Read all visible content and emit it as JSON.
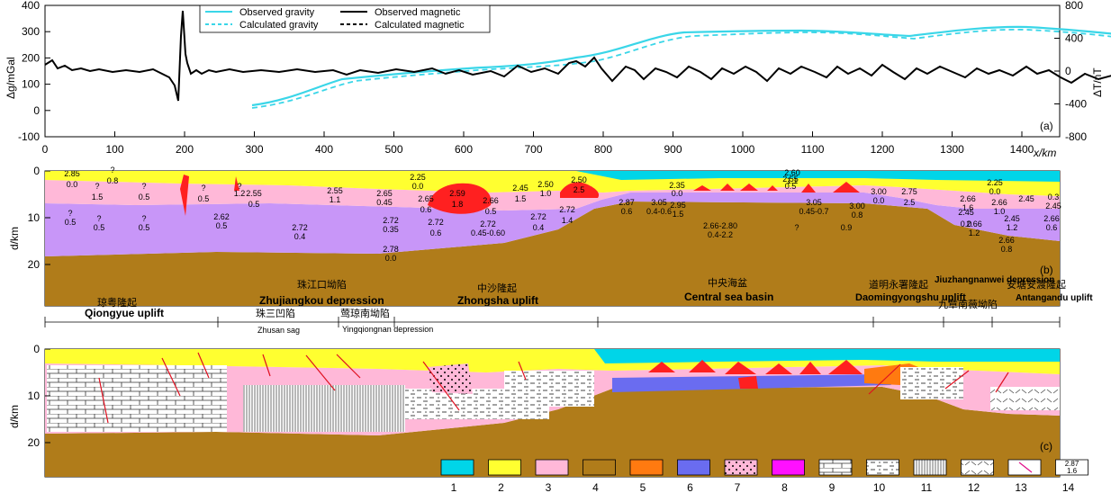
{
  "panel_a": {
    "tag": "(a)",
    "left_axis": {
      "label": "Δg/mGal",
      "ticks": [
        "400",
        "300",
        "200",
        "100",
        "0",
        "-100"
      ]
    },
    "right_axis": {
      "label": "ΔT/nT",
      "ticks": [
        "800",
        "400",
        "0",
        "-400",
        "-800"
      ]
    },
    "x_axis": {
      "label": "x/km",
      "ticks": [
        "0",
        "100",
        "200",
        "300",
        "400",
        "500",
        "600",
        "700",
        "800",
        "900",
        "1000",
        "1100",
        "1200",
        "1300",
        "1400"
      ]
    },
    "legend": [
      {
        "name": "Observed gravity",
        "style": "solid",
        "color": "#3ad6e8"
      },
      {
        "name": "Calculated gravity",
        "style": "dashed",
        "color": "#3ad6e8"
      },
      {
        "name": "Observed magnetic",
        "style": "solid",
        "color": "#000000"
      },
      {
        "name": "Calculated magnetic",
        "style": "dashed",
        "color": "#000000"
      }
    ]
  },
  "panel_b": {
    "tag": "(b)",
    "depth_label": "d/km",
    "depth_ticks": [
      "0",
      "10",
      "20"
    ],
    "units": [
      {
        "id": "qiongyue",
        "cn": "琼粤隆起",
        "en": "Qiongyue uplift"
      },
      {
        "id": "zhujiangkou",
        "cn": "珠江口坳陷",
        "en": "Zhujiangkou depression"
      },
      {
        "id": "zhusan",
        "cn": "珠三凹陷",
        "en": "Zhusan sag"
      },
      {
        "id": "yingqiongnan",
        "cn": "莺琼南坳陷",
        "en": "Yingqiongnan depression"
      },
      {
        "id": "zhongsha",
        "cn": "中沙隆起",
        "en": "Zhongsha uplift"
      },
      {
        "id": "central",
        "cn": "中央海盆",
        "en": "Central sea basin"
      },
      {
        "id": "daoming",
        "cn": "道明永署隆起",
        "en": "Daomingyongshu uplift"
      },
      {
        "id": "jiuzhang",
        "cn": "九章南薇坳陷",
        "en": "Jiuzhangnanwei depression"
      },
      {
        "id": "antangandu",
        "cn": "安塘安渡隆起",
        "en": "Antangandu uplift"
      }
    ],
    "labels": [
      "2.25",
      "0.0",
      "2.50",
      "2.5",
      "2.35",
      "0.0",
      "2.55",
      "0.5",
      "2.60",
      "1.1",
      "2.25",
      "0.0",
      "2.55",
      "0.5",
      "2.55",
      "1.1",
      "2.65",
      "0.45",
      "2.65",
      "0.6",
      "2.59",
      "1.8",
      "2.66",
      "0.5",
      "2.45",
      "1.5",
      "2.50",
      "1.0",
      "2.62",
      "0.5",
      "2.72",
      "0.4",
      "2.72",
      "0.35",
      "2.72",
      "0.6",
      "2.72",
      "0.45-0.60",
      "2.72",
      "1.4",
      "2.72",
      "0.4",
      "2.78",
      "0.0",
      "2.87",
      "0.6",
      "3.05",
      "0.4-0.6",
      "2.95",
      "1.5",
      "2.66-2.80",
      "0.4-2.2",
      "3.05",
      "0.45-0.7",
      "3.00",
      "0.8",
      "3.00",
      "0.0",
      "2.75",
      "2.5",
      "2.66",
      "1.6",
      "2.45",
      "0.0",
      "2.66",
      "1.2",
      "2.66",
      "1.0",
      "2.45",
      "0.3",
      "2.45",
      "2.45",
      "1.2",
      "2.66",
      "0.6",
      "2.66",
      "0.8",
      "2.85",
      "0.0",
      "?",
      "0.8",
      "?",
      "1.5",
      "?",
      "0.5",
      "?",
      "0.5",
      "?",
      "0.5",
      "?",
      "0.5",
      "?",
      "0.5",
      "?",
      "1.2",
      "?",
      "0.9"
    ]
  },
  "panel_c": {
    "tag": "(c)",
    "depth_label": "d/km",
    "depth_ticks": [
      "0",
      "10",
      "20"
    ]
  },
  "legend_numbers": [
    "1",
    "2",
    "3",
    "4",
    "5",
    "6",
    "7",
    "8",
    "9",
    "10",
    "11",
    "12",
    "13",
    "14"
  ],
  "legend_sample": [
    "2.87",
    "1.6"
  ],
  "colors": {
    "water": "#00d5e8",
    "sediment": "#ffff30",
    "upper_crust": "#ffb8d8",
    "mantle": "#b07c1a",
    "volcanic": "#ff2020",
    "orange": "#ff7a10",
    "blue": "#6a6cf0",
    "magenta": "#ff10ff",
    "lower_crust": "#c896f8"
  }
}
